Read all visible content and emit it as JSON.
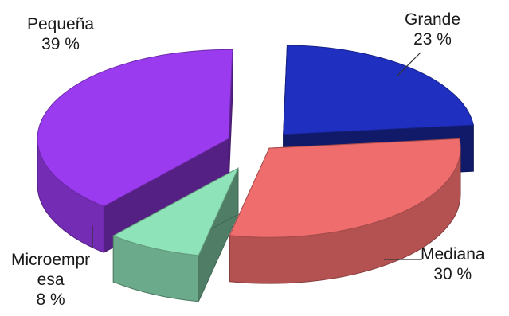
{
  "chart_data": {
    "type": "pie",
    "style": "3d-exploded",
    "title": "",
    "slices": [
      {
        "label": "Grande",
        "pct_text": "23 %",
        "value": 23,
        "color": "#1f2fbf"
      },
      {
        "label": "Mediana",
        "pct_text": "30 %",
        "value": 30,
        "color": "#f06d6d"
      },
      {
        "label": "Microempr esa",
        "label_lines": [
          "Microempr",
          "esa"
        ],
        "pct_text": "8 %",
        "value": 8,
        "color": "#8fe3b8"
      },
      {
        "label": "Pequeña",
        "pct_text": "39 %",
        "value": 39,
        "color": "#9b3bf0"
      }
    ]
  }
}
